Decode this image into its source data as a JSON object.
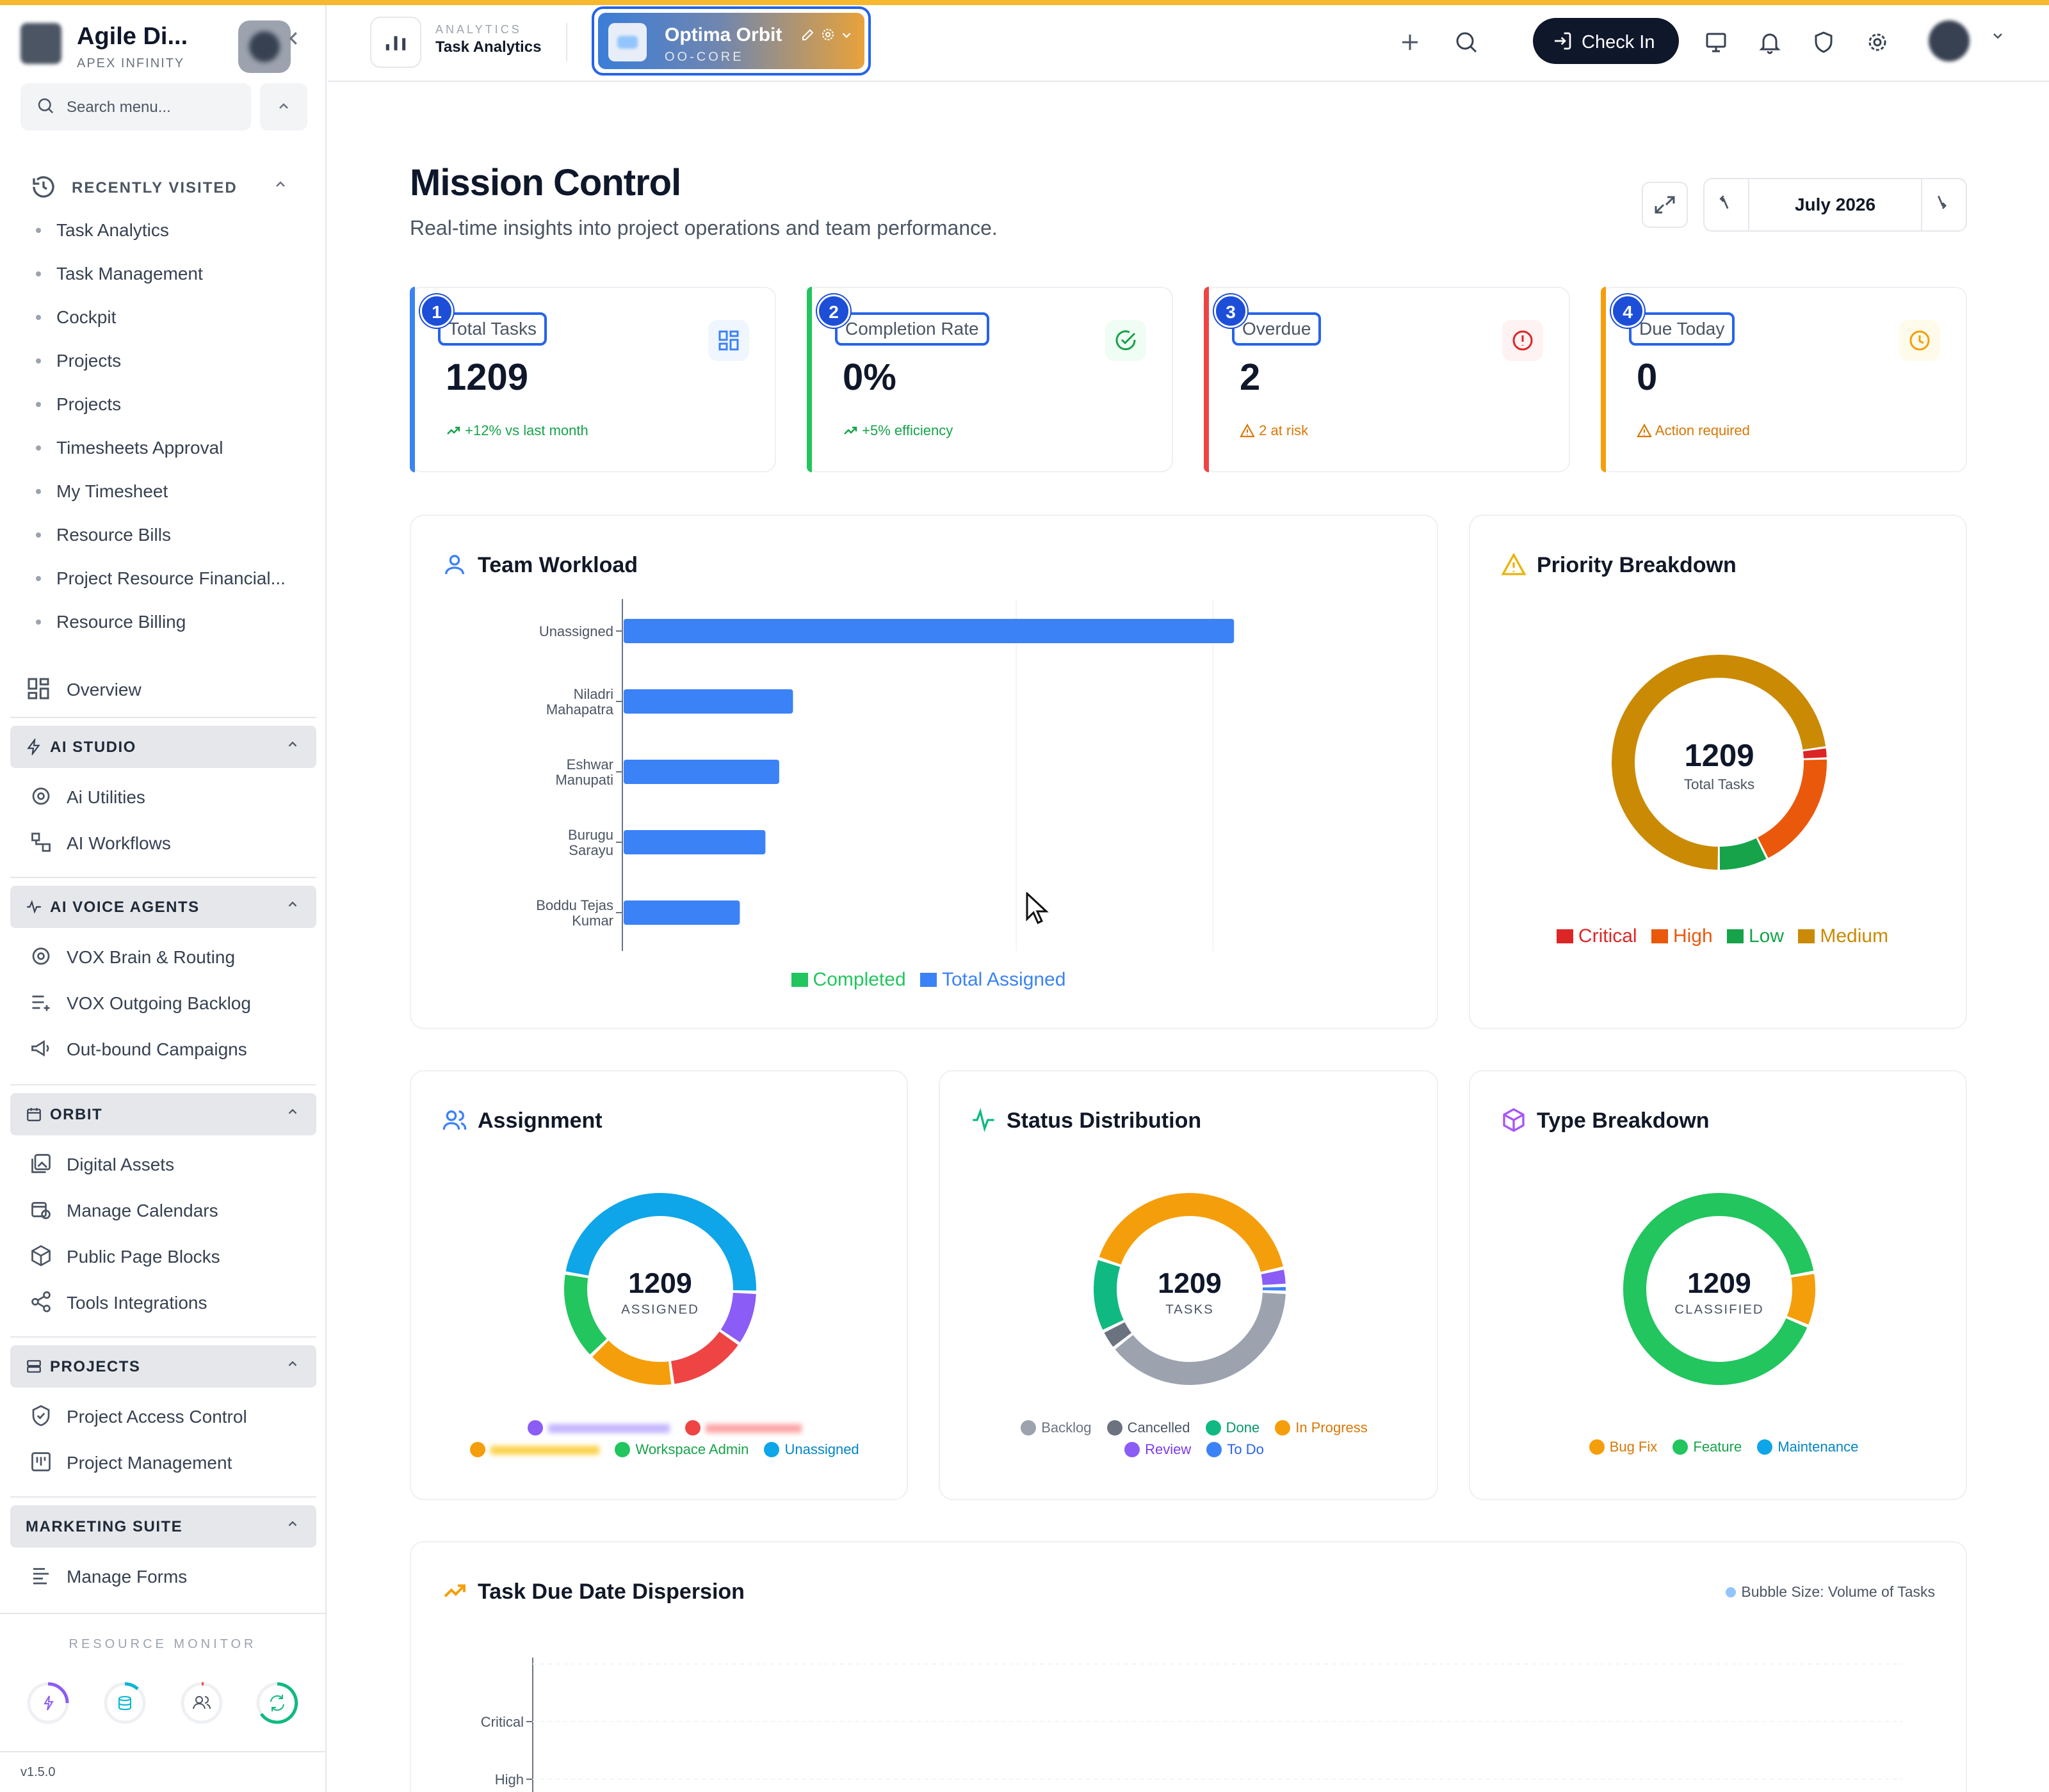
{
  "brand": {
    "title": "Agile Di...",
    "subtitle": "APEX INFINITY"
  },
  "sidebar": {
    "search_placeholder": "Search menu...",
    "recent_label": "RECENTLY VISITED",
    "recent_items": [
      "Task Analytics",
      "Task Management",
      "Cockpit",
      "Projects",
      "Projects",
      "Timesheets Approval",
      "My Timesheet",
      "Resource Bills",
      "Project Resource Financial...",
      "Resource Billing"
    ],
    "overview_label": "Overview",
    "sections": [
      {
        "title": "AI STUDIO",
        "icon": "bolt-icon",
        "items": [
          "Ai Utilities",
          "AI Workflows"
        ]
      },
      {
        "title": "AI VOICE AGENTS",
        "icon": "pulse-icon",
        "items": [
          "VOX Brain & Routing",
          "VOX Outgoing Backlog",
          "Out-bound Campaigns"
        ]
      },
      {
        "title": "ORBIT",
        "icon": "calendar-icon",
        "items": [
          "Digital Assets",
          "Manage Calendars",
          "Public Page Blocks",
          "Tools Integrations"
        ]
      },
      {
        "title": "PROJECTS",
        "icon": "server-icon",
        "items": [
          "Project Access Control",
          "Project Management"
        ]
      },
      {
        "title": "MARKETING SUITE",
        "icon": "",
        "items": [
          "Manage Forms"
        ]
      }
    ],
    "resource_monitor_label": "RESOURCE MONITOR",
    "version": "v1.5.0"
  },
  "header": {
    "kicker": "ANALYTICS",
    "page": "Task Analytics",
    "workspace_name": "Optima Orbit",
    "workspace_code": "OO-CORE",
    "checkin_label": "Check In"
  },
  "page": {
    "title": "Mission Control",
    "subtitle": "Real-time insights into project operations and team performance.",
    "month": "July 2026"
  },
  "kpis": [
    {
      "badge": "1",
      "label": "Total Tasks",
      "value": "1209",
      "foot": "+12% vs last month",
      "color": "#3b82f6",
      "foot_color": "#16a34a"
    },
    {
      "badge": "2",
      "label": "Completion Rate",
      "value": "0%",
      "foot": "+5% efficiency",
      "color": "#22c55e",
      "foot_color": "#16a34a"
    },
    {
      "badge": "3",
      "label": "Overdue",
      "value": "2",
      "foot": "2 at risk",
      "color": "#ef4444",
      "foot_color": "#d97706"
    },
    {
      "badge": "4",
      "label": "Due Today",
      "value": "0",
      "foot": "Action required",
      "color": "#f59e0b",
      "foot_color": "#d97706"
    }
  ],
  "cards": {
    "team_workload": "Team Workload",
    "priority": "Priority Breakdown",
    "assignment": "Assignment",
    "status": "Status Distribution",
    "type": "Type Breakdown",
    "dispersion": "Task Due Date Dispersion",
    "dispersion_note": "Bubble Size: Volume of Tasks"
  },
  "chart_data": [
    {
      "type": "bar",
      "orientation": "horizontal",
      "title": "Team Workload",
      "categories": [
        "Unassigned",
        "Niladri Mahapatra",
        "Eshwar Manupati",
        "Burugu Sarayu",
        "Boddu Tejas Kumar"
      ],
      "series": [
        {
          "name": "Completed",
          "values": [
            0,
            0,
            0,
            0,
            0
          ],
          "color": "#22c55e"
        },
        {
          "name": "Total Assigned",
          "values": [
            310,
            86,
            79,
            72,
            59
          ],
          "color": "#3b82f6"
        }
      ],
      "xlim": [
        0,
        400
      ],
      "legend": "bottom"
    },
    {
      "type": "pie",
      "title": "Priority Breakdown",
      "center_value": "1209",
      "center_label": "Total Tasks",
      "labels": [
        "Critical",
        "High",
        "Low",
        "Medium"
      ],
      "values": [
        20,
        220,
        90,
        879
      ],
      "colors": [
        "#dc2626",
        "#ea580c",
        "#16a34a",
        "#ca8a04"
      ]
    },
    {
      "type": "pie",
      "title": "Assignment",
      "center_value": "1209",
      "center_label": "ASSIGNED",
      "labels": [
        "",
        "",
        "",
        "Workspace Admin",
        "Unassigned"
      ],
      "values": [
        110,
        160,
        180,
        180,
        579
      ],
      "colors": [
        "#8b5cf6",
        "#ef4444",
        "#f59e0b",
        "#22c55e",
        "#0ea5e9"
      ]
    },
    {
      "type": "pie",
      "title": "Status Distribution",
      "center_value": "1209",
      "center_label": "TASKS",
      "labels": [
        "Backlog",
        "Cancelled",
        "Done",
        "In Progress",
        "Review",
        "To Do"
      ],
      "values": [
        470,
        40,
        150,
        500,
        35,
        14
      ],
      "colors": [
        "#9ca3af",
        "#6b7280",
        "#10b981",
        "#f59e0b",
        "#8b5cf6",
        "#3b82f6"
      ]
    },
    {
      "type": "pie",
      "title": "Type Breakdown",
      "center_value": "1209",
      "center_label": "CLASSIFIED",
      "labels": [
        "Bug Fix",
        "Feature",
        "Maintenance"
      ],
      "values": [
        110,
        1099,
        0
      ],
      "colors": [
        "#f59e0b",
        "#22c55e",
        "#0ea5e9"
      ]
    },
    {
      "type": "scatter",
      "title": "Task Due Date Dispersion",
      "y_categories": [
        "Critical",
        "High"
      ],
      "points": []
    }
  ],
  "colors": {
    "accent": "#f5b82e",
    "primary": "#2563eb",
    "dark": "#0f172a"
  }
}
